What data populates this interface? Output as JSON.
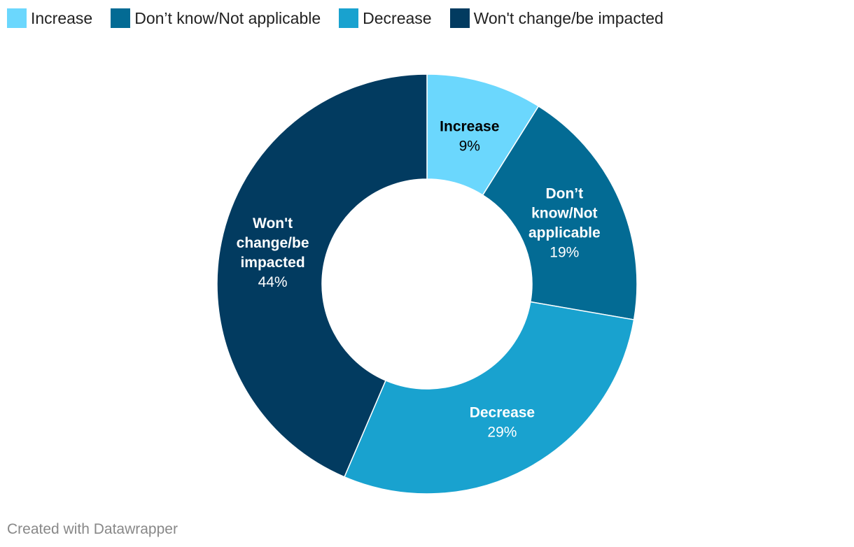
{
  "chart_data": {
    "type": "pie",
    "variant": "donut",
    "title": "",
    "legend_position": "top-left",
    "slices": [
      {
        "label": "Increase",
        "value": 9,
        "display": "9%",
        "color": "#6bd7fd",
        "label_color": "#000000",
        "label_lines": [
          "Increase"
        ]
      },
      {
        "label": "Don’t know/Not applicable",
        "value": 19,
        "display": "19%",
        "color": "#036b94",
        "label_color": "#ffffff",
        "label_lines": [
          "Don’t",
          "know/Not",
          "applicable"
        ]
      },
      {
        "label": "Decrease",
        "value": 29,
        "display": "29%",
        "color": "#19a2cf",
        "label_color": "#ffffff",
        "label_lines": [
          "Decrease"
        ]
      },
      {
        "label": "Won't change/be impacted",
        "value": 44,
        "display": "44%",
        "color": "#023b60",
        "label_color": "#ffffff",
        "label_lines": [
          "Won't",
          "change/be",
          "impacted"
        ]
      }
    ]
  },
  "footer": {
    "credit": "Created with Datawrapper"
  }
}
